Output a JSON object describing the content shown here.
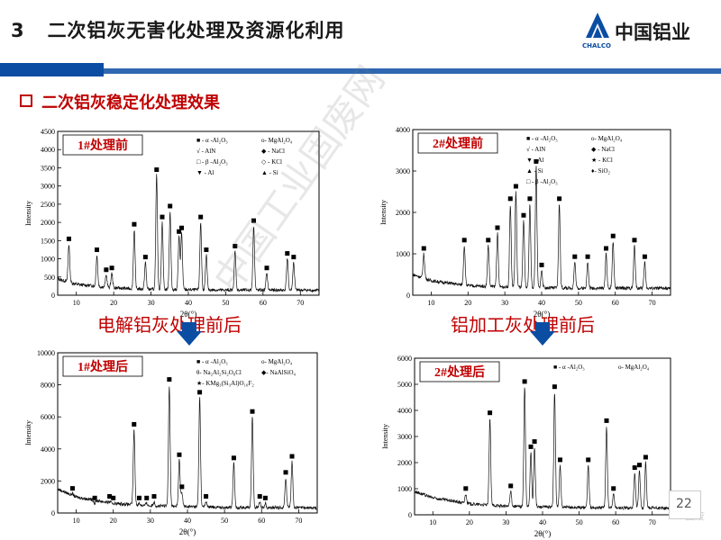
{
  "header": {
    "slide_number": "3",
    "slide_title": "二次铝灰无害化处理及资源化利用",
    "logo_text": "中国铝业",
    "logo_sub": "CHALCO"
  },
  "section": {
    "heading": "二次铝灰稳定化处理效果"
  },
  "captions": {
    "left": "电解铝灰处理前后",
    "right": "铝加工灰处理前后"
  },
  "watermark": "中国工业固废网",
  "corner_watermark": "固废",
  "page_number": "22",
  "colors": {
    "accent_blue": "#0a4da2",
    "heading_red": "#c00000",
    "label_red": "#c00000"
  },
  "chart_data": [
    {
      "type": "line",
      "panel_label": "1#处理前",
      "xlabel": "2θ(°)",
      "ylabel": "Intensity",
      "xlim": [
        5,
        75
      ],
      "ylim": [
        0,
        4500
      ],
      "xticks": [
        "10",
        "20",
        "30",
        "40",
        "50",
        "60",
        "70"
      ],
      "yticks": [
        "0",
        "500",
        "1000",
        "1500",
        "2000",
        "2500",
        "3000",
        "3500",
        "4000",
        "4500"
      ],
      "legend": [
        "■ - α -Al₂O₃",
        "o- MgAl₂O₄",
        "√ - AlN",
        "◆ - NaCl",
        "□ - β -Al₂O₃",
        "◇ - KCl",
        "▼ - Al",
        "▲ - Si"
      ],
      "peaks": [
        [
          8,
          1400
        ],
        [
          15.5,
          1100
        ],
        [
          18,
          550
        ],
        [
          19.5,
          600
        ],
        [
          25.5,
          1800
        ],
        [
          28.5,
          900
        ],
        [
          31.5,
          3300
        ],
        [
          33,
          2000
        ],
        [
          35.1,
          2300
        ],
        [
          37.5,
          1600
        ],
        [
          38.2,
          1700
        ],
        [
          43.3,
          2000
        ],
        [
          44.8,
          1100
        ],
        [
          52.5,
          1200
        ],
        [
          57.5,
          1900
        ],
        [
          61,
          600
        ],
        [
          66.5,
          1000
        ],
        [
          68.2,
          900
        ]
      ],
      "baseline": [
        [
          5,
          450
        ],
        [
          10,
          300
        ],
        [
          20,
          200
        ],
        [
          30,
          160
        ],
        [
          40,
          150
        ],
        [
          50,
          140
        ],
        [
          60,
          140
        ],
        [
          70,
          140
        ],
        [
          75,
          130
        ]
      ]
    },
    {
      "type": "line",
      "panel_label": "2#处理前",
      "xlabel": "2θ(°)",
      "ylabel": "Intensity",
      "xlim": [
        5,
        75
      ],
      "ylim": [
        0,
        4000
      ],
      "xticks": [
        "10",
        "20",
        "30",
        "40",
        "50",
        "60",
        "70"
      ],
      "yticks": [
        "0",
        "1000",
        "2000",
        "3000",
        "4000"
      ],
      "legend": [
        "■ - α -Al₂O₃",
        "o- MgAl₂O₄",
        "√ - AlN",
        "◆ - NaCl",
        "▼ - Al",
        "★ - KCl",
        "▲ - Si",
        "♦- SiO₂",
        "□ - β -Al₂O₃"
      ],
      "peaks": [
        [
          8,
          1000
        ],
        [
          19,
          1200
        ],
        [
          25.5,
          1200
        ],
        [
          28,
          1500
        ],
        [
          31.5,
          2200
        ],
        [
          33,
          2500
        ],
        [
          35.1,
          1800
        ],
        [
          36.8,
          2200
        ],
        [
          38.5,
          3100
        ],
        [
          40,
          600
        ],
        [
          44.8,
          2200
        ],
        [
          49,
          800
        ],
        [
          52.5,
          800
        ],
        [
          57.5,
          1000
        ],
        [
          59.4,
          1300
        ],
        [
          65.2,
          1200
        ],
        [
          68,
          800
        ]
      ],
      "baseline": [
        [
          5,
          500
        ],
        [
          10,
          350
        ],
        [
          20,
          230
        ],
        [
          30,
          200
        ],
        [
          40,
          180
        ],
        [
          50,
          170
        ],
        [
          60,
          170
        ],
        [
          70,
          170
        ],
        [
          75,
          160
        ]
      ]
    },
    {
      "type": "line",
      "panel_label": "1#处理后",
      "xlabel": "2θ(°)",
      "ylabel": "Intensity",
      "xlim": [
        5,
        75
      ],
      "ylim": [
        0,
        10000
      ],
      "xticks": [
        "10",
        "20",
        "30",
        "40",
        "50",
        "60",
        "70"
      ],
      "yticks": [
        "0",
        "2000",
        "4000",
        "6000",
        "8000",
        "10000"
      ],
      "legend": [
        "■ - α -Al₂O₃",
        "o- MgAl₂O₄",
        "θ- Na₂Al₂Si₂O₈Cl",
        "◆- NaAlSiO₄",
        "★- KMg₃(Si₃Al)O₁₀F₂"
      ],
      "peaks": [
        [
          9,
          1200
        ],
        [
          15,
          600
        ],
        [
          19,
          700
        ],
        [
          20,
          600
        ],
        [
          25.6,
          5200
        ],
        [
          27,
          600
        ],
        [
          29,
          600
        ],
        [
          31,
          700
        ],
        [
          35.1,
          8000
        ],
        [
          37.8,
          3300
        ],
        [
          38.5,
          1300
        ],
        [
          43.3,
          7200
        ],
        [
          45,
          700
        ],
        [
          52.5,
          3100
        ],
        [
          57.5,
          6000
        ],
        [
          59.5,
          700
        ],
        [
          61,
          600
        ],
        [
          66.5,
          2200
        ],
        [
          68.2,
          3200
        ]
      ],
      "baseline": [
        [
          5,
          1500
        ],
        [
          10,
          1000
        ],
        [
          20,
          600
        ],
        [
          30,
          450
        ],
        [
          40,
          400
        ],
        [
          50,
          350
        ],
        [
          60,
          340
        ],
        [
          70,
          330
        ],
        [
          75,
          320
        ]
      ]
    },
    {
      "type": "line",
      "panel_label": "2#处理后",
      "xlabel": "2θ(°)",
      "ylabel": "Intensity",
      "xlim": [
        5,
        75
      ],
      "ylim": [
        0,
        6000
      ],
      "xticks": [
        "10",
        "20",
        "30",
        "40",
        "50",
        "60",
        "70"
      ],
      "yticks": [
        "0",
        "1000",
        "2000",
        "3000",
        "4000",
        "5000",
        "6000"
      ],
      "legend": [
        "■ - α -Al₂O₃",
        "o- MgAl₂O₄"
      ],
      "peaks": [
        [
          19,
          800
        ],
        [
          25.6,
          3700
        ],
        [
          31.3,
          900
        ],
        [
          35.1,
          4900
        ],
        [
          36.8,
          2400
        ],
        [
          37.8,
          2600
        ],
        [
          43.3,
          4700
        ],
        [
          44.8,
          1900
        ],
        [
          52.5,
          1900
        ],
        [
          57.5,
          3400
        ],
        [
          59.4,
          800
        ],
        [
          65.2,
          1600
        ],
        [
          66.5,
          1700
        ],
        [
          68.2,
          2000
        ]
      ],
      "baseline": [
        [
          5,
          900
        ],
        [
          10,
          650
        ],
        [
          20,
          420
        ],
        [
          30,
          330
        ],
        [
          40,
          300
        ],
        [
          50,
          280
        ],
        [
          60,
          270
        ],
        [
          70,
          260
        ],
        [
          75,
          250
        ]
      ]
    }
  ]
}
